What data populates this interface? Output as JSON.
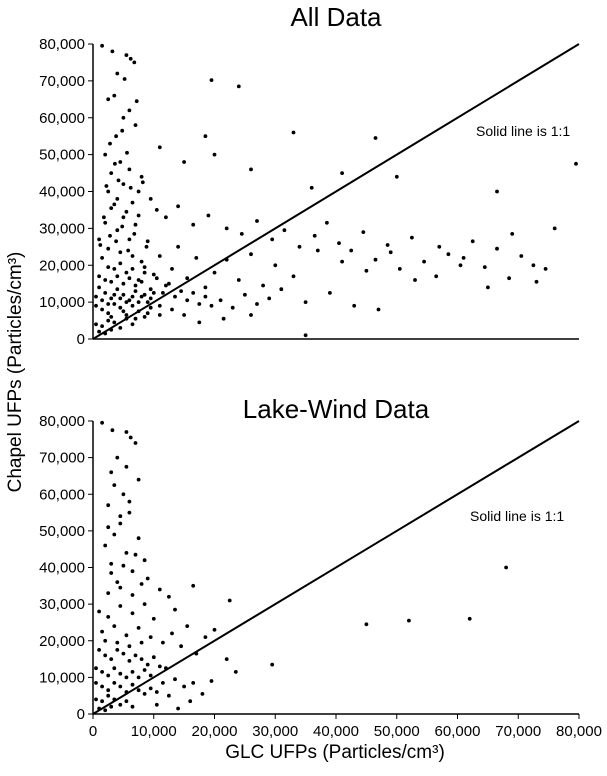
{
  "figure": {
    "ylabel": "Chapel UFPs (Particles/cm³)",
    "xlabel": "GLC UFPs (Particles/cm³)"
  },
  "chart_data": [
    {
      "type": "scatter",
      "title": "All Data",
      "annotation": "Solid line is 1:1",
      "xlim": [
        0,
        80000
      ],
      "ylim": [
        0,
        80000
      ],
      "yticks": [
        0,
        10000,
        20000,
        30000,
        40000,
        50000,
        60000,
        70000,
        80000
      ],
      "ytick_labels": [
        "0",
        "10,000",
        "20,000",
        "30,000",
        "40,000",
        "50,000",
        "60,000",
        "70,000",
        "80,000"
      ],
      "reference_line": {
        "from": [
          0,
          0
        ],
        "to": [
          80000,
          80000
        ]
      },
      "marker_color": "#000000",
      "points": [
        [
          1500,
          79500
        ],
        [
          3200,
          78000
        ],
        [
          5500,
          77000
        ],
        [
          6200,
          76000
        ],
        [
          6800,
          75000
        ],
        [
          4000,
          72000
        ],
        [
          19500,
          70200
        ],
        [
          24000,
          68500
        ],
        [
          2500,
          65000
        ],
        [
          5000,
          60000
        ],
        [
          7000,
          58000
        ],
        [
          3800,
          55000
        ],
        [
          18500,
          55000
        ],
        [
          33000,
          56000
        ],
        [
          46500,
          54500
        ],
        [
          79500,
          47500
        ],
        [
          41000,
          45000
        ],
        [
          50000,
          44000
        ],
        [
          66500,
          40000
        ],
        [
          20000,
          50000
        ],
        [
          26000,
          46000
        ],
        [
          36000,
          41000
        ],
        [
          15000,
          48000
        ],
        [
          11000,
          52000
        ],
        [
          2000,
          50000
        ],
        [
          4500,
          48000
        ],
        [
          6000,
          46000
        ],
        [
          8000,
          44000
        ],
        [
          3000,
          45000
        ],
        [
          5000,
          42000
        ],
        [
          7500,
          40000
        ],
        [
          9500,
          38000
        ],
        [
          2500,
          40000
        ],
        [
          4000,
          38000
        ],
        [
          6500,
          37000
        ],
        [
          10500,
          35000
        ],
        [
          12000,
          33000
        ],
        [
          14000,
          36000
        ],
        [
          16500,
          31000
        ],
        [
          19000,
          33500
        ],
        [
          22000,
          30000
        ],
        [
          24500,
          28500
        ],
        [
          27000,
          32000
        ],
        [
          29500,
          27000
        ],
        [
          31500,
          29500
        ],
        [
          34000,
          25000
        ],
        [
          36500,
          28000
        ],
        [
          38500,
          31500
        ],
        [
          40500,
          26000
        ],
        [
          42500,
          24000
        ],
        [
          44500,
          29000
        ],
        [
          46500,
          21500
        ],
        [
          48500,
          25500
        ],
        [
          50500,
          19000
        ],
        [
          52500,
          27500
        ],
        [
          54500,
          21000
        ],
        [
          56500,
          17000
        ],
        [
          58500,
          23000
        ],
        [
          60500,
          20000
        ],
        [
          62500,
          26500
        ],
        [
          64500,
          19500
        ],
        [
          66500,
          24500
        ],
        [
          68500,
          16500
        ],
        [
          70500,
          22500
        ],
        [
          72500,
          20000
        ],
        [
          74500,
          19000
        ],
        [
          76000,
          30000
        ],
        [
          73000,
          15500
        ],
        [
          69000,
          28500
        ],
        [
          65000,
          14000
        ],
        [
          61000,
          22000
        ],
        [
          57000,
          25000
        ],
        [
          53000,
          16000
        ],
        [
          49000,
          23500
        ],
        [
          45000,
          18500
        ],
        [
          41000,
          21000
        ],
        [
          37000,
          24000
        ],
        [
          33000,
          17000
        ],
        [
          30000,
          20000
        ],
        [
          28000,
          14500
        ],
        [
          26000,
          23000
        ],
        [
          24000,
          16000
        ],
        [
          22000,
          21500
        ],
        [
          20000,
          18000
        ],
        [
          18500,
          14000
        ],
        [
          17000,
          22000
        ],
        [
          15500,
          16500
        ],
        [
          14000,
          25000
        ],
        [
          13000,
          19000
        ],
        [
          12000,
          14500
        ],
        [
          11000,
          22500
        ],
        [
          10000,
          17500
        ],
        [
          9000,
          26500
        ],
        [
          8000,
          21000
        ],
        [
          7000,
          31000
        ],
        [
          6000,
          27000
        ],
        [
          5000,
          33000
        ],
        [
          4000,
          29500
        ],
        [
          3000,
          35500
        ],
        [
          2000,
          31500
        ],
        [
          1000,
          27000
        ],
        [
          1500,
          22000
        ],
        [
          2500,
          24500
        ],
        [
          3500,
          19000
        ],
        [
          4500,
          23500
        ],
        [
          5500,
          18000
        ],
        [
          6500,
          22500
        ],
        [
          7500,
          16000
        ],
        [
          8500,
          19500
        ],
        [
          9500,
          13500
        ],
        [
          10500,
          16500
        ],
        [
          11500,
          12500
        ],
        [
          12500,
          15000
        ],
        [
          13500,
          11500
        ],
        [
          14500,
          13000
        ],
        [
          15500,
          10500
        ],
        [
          16500,
          12500
        ],
        [
          17500,
          9500
        ],
        [
          18500,
          11500
        ],
        [
          19500,
          9000
        ],
        [
          21000,
          10500
        ],
        [
          23000,
          8500
        ],
        [
          25000,
          12000
        ],
        [
          27000,
          9500
        ],
        [
          29000,
          11000
        ],
        [
          31000,
          13500
        ],
        [
          35000,
          10000
        ],
        [
          39000,
          12500
        ],
        [
          43000,
          9000
        ],
        [
          47000,
          8000
        ],
        [
          35000,
          1000
        ],
        [
          26000,
          6500
        ],
        [
          21500,
          5500
        ],
        [
          17500,
          4500
        ],
        [
          1000,
          14000
        ],
        [
          2000,
          12500
        ],
        [
          3000,
          11000
        ],
        [
          4000,
          13500
        ],
        [
          5000,
          12000
        ],
        [
          6000,
          10500
        ],
        [
          7000,
          13000
        ],
        [
          8000,
          11500
        ],
        [
          9000,
          10000
        ],
        [
          10000,
          12500
        ],
        [
          11000,
          9000
        ],
        [
          500,
          9000
        ],
        [
          1500,
          8000
        ],
        [
          2500,
          7000
        ],
        [
          3500,
          9500
        ],
        [
          4500,
          8500
        ],
        [
          5500,
          6500
        ],
        [
          6500,
          9000
        ],
        [
          7500,
          7500
        ],
        [
          8500,
          6000
        ],
        [
          9500,
          8500
        ],
        [
          500,
          4000
        ],
        [
          1500,
          3500
        ],
        [
          2500,
          5000
        ],
        [
          3500,
          4500
        ],
        [
          4500,
          3000
        ],
        [
          5500,
          5500
        ],
        [
          6500,
          4000
        ],
        [
          1000,
          2000
        ],
        [
          2000,
          1500
        ],
        [
          3000,
          2500
        ],
        [
          1000,
          17000
        ],
        [
          2000,
          16000
        ],
        [
          3000,
          15500
        ],
        [
          4000,
          17000
        ],
        [
          5000,
          15000
        ],
        [
          6000,
          16500
        ],
        [
          7000,
          14500
        ],
        [
          8000,
          15500
        ],
        [
          2500,
          19500
        ],
        [
          4500,
          20500
        ],
        [
          6500,
          19000
        ],
        [
          8500,
          18000
        ],
        [
          500,
          11500
        ],
        [
          1500,
          10500
        ],
        [
          2500,
          9500
        ],
        [
          3500,
          12000
        ],
        [
          4500,
          11000
        ],
        [
          5500,
          10000
        ],
        [
          6500,
          11500
        ],
        [
          7500,
          10000
        ],
        [
          8500,
          12000
        ],
        [
          9500,
          11000
        ],
        [
          3000,
          6000
        ],
        [
          5000,
          7500
        ],
        [
          7000,
          5500
        ],
        [
          9000,
          7000
        ],
        [
          11000,
          6500
        ],
        [
          13000,
          8000
        ],
        [
          15000,
          6500
        ],
        [
          1200,
          25500
        ],
        [
          3800,
          26500
        ],
        [
          5800,
          24000
        ],
        [
          2800,
          28000
        ],
        [
          4800,
          30500
        ],
        [
          6800,
          28500
        ],
        [
          8800,
          25000
        ],
        [
          1800,
          33000
        ],
        [
          3500,
          36500
        ],
        [
          5500,
          34500
        ],
        [
          7500,
          33500
        ],
        [
          2200,
          41500
        ],
        [
          4200,
          43000
        ],
        [
          6200,
          41000
        ],
        [
          8200,
          42500
        ],
        [
          3600,
          47500
        ],
        [
          5600,
          50500
        ],
        [
          2800,
          53000
        ],
        [
          4800,
          56500
        ],
        [
          6000,
          62000
        ],
        [
          3500,
          66000
        ],
        [
          7200,
          64500
        ],
        [
          5200,
          70500
        ]
      ]
    },
    {
      "type": "scatter",
      "title": "Lake-Wind Data",
      "annotation": "Solid line is 1:1",
      "xlim": [
        0,
        80000
      ],
      "ylim": [
        0,
        80000
      ],
      "xticks": [
        0,
        10000,
        20000,
        30000,
        40000,
        50000,
        60000,
        70000,
        80000
      ],
      "xtick_labels": [
        "0",
        "10,000",
        "20,000",
        "30,000",
        "40,000",
        "50,000",
        "60,000",
        "70,000",
        "80,000"
      ],
      "yticks": [
        0,
        10000,
        20000,
        30000,
        40000,
        50000,
        60000,
        70000,
        80000
      ],
      "ytick_labels": [
        "0",
        "10,000",
        "20,000",
        "30,000",
        "40,000",
        "50,000",
        "60,000",
        "70,000",
        "80,000"
      ],
      "reference_line": {
        "from": [
          0,
          0
        ],
        "to": [
          80000,
          80000
        ]
      },
      "marker_color": "#000000",
      "points": [
        [
          1500,
          79500
        ],
        [
          3200,
          77500
        ],
        [
          5500,
          77000
        ],
        [
          6200,
          75500
        ],
        [
          7000,
          74000
        ],
        [
          4000,
          70000
        ],
        [
          3000,
          66000
        ],
        [
          7500,
          64000
        ],
        [
          5000,
          60000
        ],
        [
          2500,
          57000
        ],
        [
          6000,
          55000
        ],
        [
          4500,
          52000
        ],
        [
          3500,
          49000
        ],
        [
          7500,
          48000
        ],
        [
          2000,
          46000
        ],
        [
          5500,
          44000
        ],
        [
          8500,
          42000
        ],
        [
          3000,
          41000
        ],
        [
          6500,
          39000
        ],
        [
          9000,
          37000
        ],
        [
          4000,
          36000
        ],
        [
          11000,
          34000
        ],
        [
          12500,
          32000
        ],
        [
          16500,
          35000
        ],
        [
          13500,
          28500
        ],
        [
          15500,
          24000
        ],
        [
          18500,
          21000
        ],
        [
          22500,
          31000
        ],
        [
          20000,
          23000
        ],
        [
          17000,
          16500
        ],
        [
          22000,
          15000
        ],
        [
          23500,
          11500
        ],
        [
          29500,
          13500
        ],
        [
          45000,
          24500
        ],
        [
          52000,
          25500
        ],
        [
          62000,
          26000
        ],
        [
          68000,
          40000
        ],
        [
          1000,
          28000
        ],
        [
          2500,
          26500
        ],
        [
          4500,
          29500
        ],
        [
          6500,
          27500
        ],
        [
          8500,
          30000
        ],
        [
          10000,
          26000
        ],
        [
          1500,
          22500
        ],
        [
          3500,
          24000
        ],
        [
          5500,
          21500
        ],
        [
          7500,
          23500
        ],
        [
          9500,
          21000
        ],
        [
          11500,
          19500
        ],
        [
          13000,
          22000
        ],
        [
          14500,
          18500
        ],
        [
          1000,
          17500
        ],
        [
          2000,
          16000
        ],
        [
          3000,
          15000
        ],
        [
          4000,
          17500
        ],
        [
          5000,
          16500
        ],
        [
          6000,
          14500
        ],
        [
          7000,
          16000
        ],
        [
          8000,
          15000
        ],
        [
          9000,
          13500
        ],
        [
          10000,
          15500
        ],
        [
          11000,
          13000
        ],
        [
          12000,
          12500
        ],
        [
          500,
          12500
        ],
        [
          1500,
          11500
        ],
        [
          2500,
          10500
        ],
        [
          3500,
          12500
        ],
        [
          4500,
          11000
        ],
        [
          5500,
          10000
        ],
        [
          6500,
          11500
        ],
        [
          7500,
          10000
        ],
        [
          8500,
          12000
        ],
        [
          9500,
          10500
        ],
        [
          500,
          8500
        ],
        [
          1500,
          7500
        ],
        [
          2500,
          6500
        ],
        [
          3500,
          8500
        ],
        [
          4500,
          7500
        ],
        [
          5500,
          6000
        ],
        [
          6500,
          8000
        ],
        [
          7500,
          6500
        ],
        [
          8500,
          5500
        ],
        [
          9500,
          7000
        ],
        [
          10500,
          6000
        ],
        [
          11500,
          8500
        ],
        [
          12500,
          5000
        ],
        [
          500,
          4000
        ],
        [
          1500,
          3500
        ],
        [
          2500,
          5000
        ],
        [
          3500,
          4000
        ],
        [
          4500,
          2500
        ],
        [
          5500,
          3500
        ],
        [
          6500,
          2000
        ],
        [
          1000,
          1500
        ],
        [
          2000,
          1000
        ],
        [
          3000,
          2000
        ],
        [
          13500,
          9500
        ],
        [
          15000,
          7500
        ],
        [
          16500,
          8500
        ],
        [
          18000,
          5500
        ],
        [
          19500,
          9000
        ],
        [
          16000,
          3500
        ],
        [
          14000,
          1500
        ],
        [
          10500,
          2500
        ],
        [
          2000,
          20000
        ],
        [
          4000,
          19500
        ],
        [
          6000,
          18500
        ],
        [
          8000,
          19500
        ],
        [
          2500,
          33000
        ],
        [
          4500,
          34500
        ],
        [
          6500,
          32500
        ],
        [
          8000,
          35500
        ],
        [
          3000,
          38500
        ],
        [
          5000,
          40500
        ],
        [
          7000,
          43500
        ],
        [
          2500,
          51000
        ],
        [
          4500,
          54000
        ],
        [
          6000,
          58000
        ],
        [
          3500,
          62500
        ],
        [
          5500,
          67500
        ]
      ]
    }
  ]
}
